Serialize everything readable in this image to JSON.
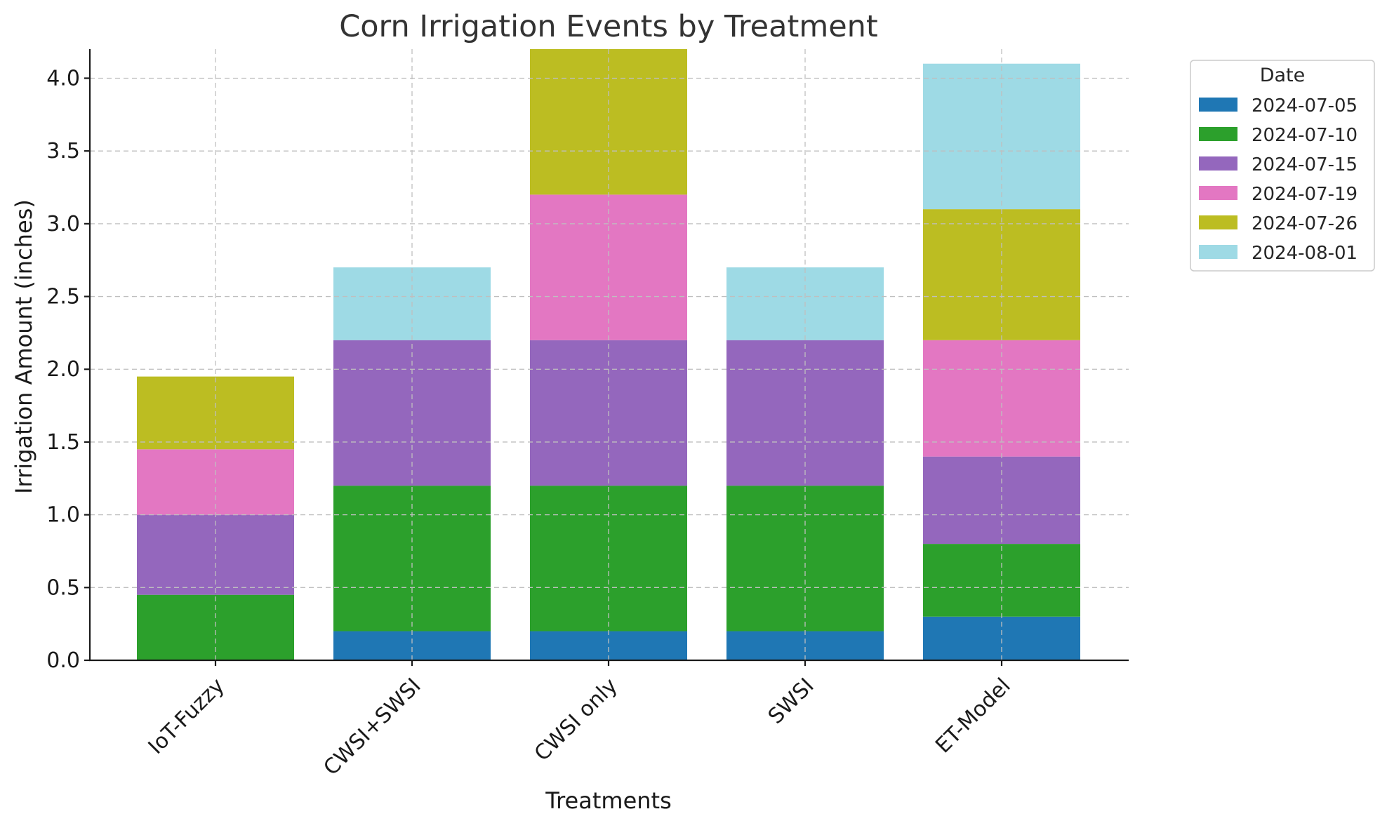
{
  "chart_data": {
    "type": "bar",
    "stacked": true,
    "title": "Corn Irrigation Events by Treatment",
    "xlabel": "Treatments",
    "ylabel": "Irrigation Amount (inches)",
    "ylim": [
      0,
      4.2
    ],
    "yticks": [
      "0.0",
      "0.5",
      "1.0",
      "1.5",
      "2.0",
      "2.5",
      "3.0",
      "3.5",
      "4.0"
    ],
    "grid": true,
    "legend": {
      "title": "Date",
      "placement": "outside-top-right"
    },
    "categories": [
      "IoT-Fuzzy",
      "CWSI+SWSI",
      "CWSI only",
      "SWSI",
      "ET-Model"
    ],
    "series": [
      {
        "name": "2024-07-05",
        "color": "#1f77b4",
        "values": [
          0,
          0.2,
          0.2,
          0.2,
          0.3
        ]
      },
      {
        "name": "2024-07-10",
        "color": "#2ca02c",
        "values": [
          0.45,
          1.0,
          1.0,
          1.0,
          0.5
        ]
      },
      {
        "name": "2024-07-15",
        "color": "#9467bd",
        "values": [
          0.55,
          1.0,
          1.0,
          1.0,
          0.6
        ]
      },
      {
        "name": "2024-07-19",
        "color": "#e377c2",
        "values": [
          0.45,
          0,
          1.0,
          0,
          0.8
        ]
      },
      {
        "name": "2024-07-26",
        "color": "#bcbd22",
        "values": [
          0.5,
          0,
          1.0,
          0,
          0.9
        ]
      },
      {
        "name": "2024-08-01",
        "color": "#9edae5",
        "values": [
          0,
          0.5,
          0,
          0.5,
          1.0
        ]
      }
    ]
  }
}
